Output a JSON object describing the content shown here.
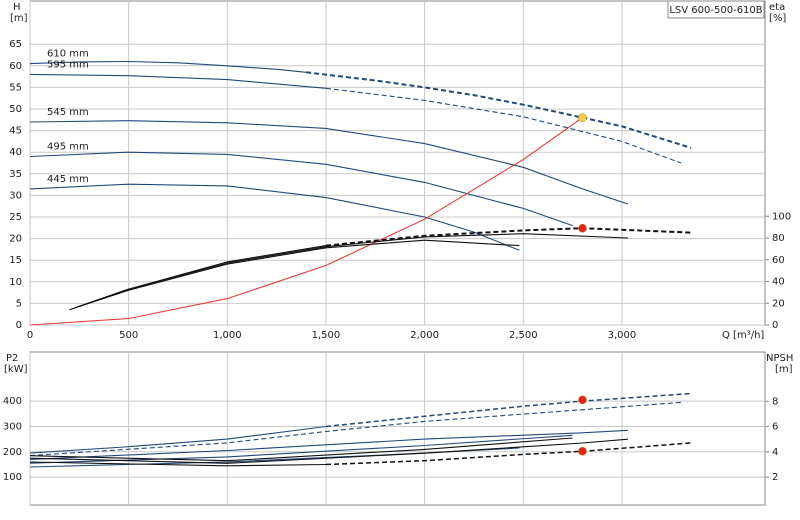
{
  "chart_data": [
    {
      "type": "line",
      "title": "LSV 600-500-610B",
      "ylabel": "H",
      "yunit": "[m]",
      "y2label": "eta",
      "y2unit": "[%]",
      "xlabel": "Q [m³/h]",
      "xlim": [
        0,
        3725
      ],
      "xticks": [
        0,
        500,
        {
          "value": 1000,
          "label": "1,000"
        },
        {
          "value": 1500,
          "label": "1,500"
        },
        {
          "value": 2000,
          "label": "2,000"
        },
        {
          "value": 2500,
          "label": "2,500"
        },
        {
          "value": 3000,
          "label": "3,000"
        }
      ],
      "ylim": [
        0,
        75
      ],
      "yticks": [
        0,
        5,
        10,
        15,
        20,
        25,
        30,
        35,
        40,
        45,
        50,
        55,
        60,
        65
      ],
      "y2lim": [
        0,
        298
      ],
      "y2ticks": [
        0,
        20,
        40,
        60,
        80,
        100
      ],
      "grid": true,
      "series": [
        {
          "label": "610 mm",
          "color": "#23497a",
          "x": [
            0,
            250,
            500,
            750,
            1000,
            1250,
            1400
          ],
          "values": [
            60.5,
            60.9,
            61,
            60.7,
            60,
            59.2,
            58.5
          ]
        },
        {
          "color": "#23497a",
          "dash": true,
          "width": 2,
          "x": [
            1400,
            1750,
            2000,
            2250,
            2500,
            2800,
            3000,
            3350
          ],
          "values": [
            58.5,
            56.6,
            55,
            53.2,
            51,
            48,
            46,
            41
          ]
        },
        {
          "label": "595 mm",
          "color": "#23497a",
          "x": [
            0,
            500,
            1000,
            1500
          ],
          "values": [
            58,
            57.7,
            56.8,
            54.8
          ]
        },
        {
          "color": "#23497a",
          "dash": true,
          "x": [
            1500,
            2000,
            2500,
            3000,
            3300
          ],
          "values": [
            54.8,
            52,
            48.2,
            42.5,
            37.5
          ]
        },
        {
          "label": "545 mm",
          "color": "#23497a",
          "x": [
            0,
            500,
            1000,
            1500,
            2000,
            2500,
            2800,
            3030
          ],
          "values": [
            47,
            47.3,
            46.8,
            45.5,
            42,
            36.5,
            31.5,
            28
          ]
        },
        {
          "label": "495 mm",
          "color": "#23497a",
          "x": [
            0,
            500,
            1000,
            1500,
            2000,
            2500,
            2750
          ],
          "values": [
            39,
            40,
            39.5,
            37.2,
            33,
            27,
            23
          ]
        },
        {
          "label": "445 mm",
          "color": "#23497a",
          "x": [
            0,
            500,
            1000,
            1500,
            2000,
            2250,
            2480
          ],
          "values": [
            31.5,
            32.6,
            32.2,
            29.5,
            25,
            21.5,
            17.3
          ]
        },
        {
          "color": "#e83b3b",
          "x": [
            0,
            500,
            1000,
            1500,
            2000,
            2500,
            2800
          ],
          "values": [
            0,
            1.5,
            6.1,
            13.8,
            24.5,
            38.3,
            48
          ]
        },
        {
          "color": "#111",
          "axis": "y2",
          "x": [
            200,
            500,
            1000,
            1500
          ],
          "values": [
            14,
            33,
            58,
            73
          ]
        },
        {
          "color": "#111",
          "axis": "y2",
          "dash": true,
          "width": 2,
          "x": [
            1500,
            2000,
            2500,
            2800,
            3350
          ],
          "values": [
            73,
            82,
            87,
            89,
            85
          ]
        },
        {
          "color": "#111",
          "axis": "y2",
          "x": [
            230,
            500,
            1000,
            1500,
            2000,
            2500,
            3030
          ],
          "values": [
            16,
            33,
            57,
            72,
            81,
            84,
            80
          ]
        },
        {
          "color": "#111",
          "axis": "y2",
          "x": [
            250,
            500,
            1000,
            1500,
            2000,
            2480
          ],
          "values": [
            17,
            32,
            56,
            71,
            78,
            73
          ]
        }
      ],
      "points": [
        {
          "x": 2800,
          "y": 48,
          "color": "#f5d142"
        },
        {
          "x": 2800,
          "y": 89,
          "axis": "y2",
          "color": "#e8201e"
        }
      ]
    },
    {
      "type": "line",
      "ylabel": "P2",
      "yunit": "[kW]",
      "y2label": "NPSH",
      "y2unit": "[m]",
      "xlim": [
        0,
        3725
      ],
      "xticks": [
        0,
        500,
        1000,
        1500,
        2000,
        2500,
        3000
      ],
      "ylim": [
        -10,
        594
      ],
      "yticks": [
        100,
        200,
        300,
        400
      ],
      "y2lim": [
        -0.2,
        11.9
      ],
      "y2ticks": [
        2,
        4,
        6,
        8
      ],
      "grid": true,
      "series": [
        {
          "color": "#23497a",
          "x": [
            0,
            500,
            1000,
            1500
          ],
          "values": [
            195,
            220,
            250,
            300
          ]
        },
        {
          "color": "#23497a",
          "dash": true,
          "width": 1.5,
          "x": [
            1500,
            2000,
            2500,
            2800,
            3350
          ],
          "values": [
            300,
            340,
            380,
            400,
            430
          ]
        },
        {
          "color": "#23497a",
          "dash": true,
          "x": [
            0,
            1000,
            1500,
            2000,
            3300
          ],
          "values": [
            185,
            235,
            280,
            320,
            395
          ]
        },
        {
          "color": "#23497a",
          "x": [
            0,
            1000,
            2000,
            2800,
            3030
          ],
          "values": [
            170,
            205,
            250,
            275,
            285
          ]
        },
        {
          "color": "#23497a",
          "x": [
            0,
            1000,
            2000,
            2750
          ],
          "values": [
            155,
            180,
            225,
            265
          ]
        },
        {
          "color": "#23497a",
          "x": [
            0,
            1000,
            2000,
            2480
          ],
          "values": [
            140,
            160,
            195,
            215
          ]
        },
        {
          "color": "#111",
          "axis": "y2",
          "x": [
            0,
            1000,
            1500
          ],
          "values": [
            3.2,
            2.9,
            3
          ]
        },
        {
          "color": "#111",
          "axis": "y2",
          "dash": true,
          "width": 1.5,
          "x": [
            1500,
            2000,
            2500,
            2800,
            3350
          ],
          "values": [
            3,
            3.3,
            3.8,
            4.05,
            4.7
          ]
        },
        {
          "color": "#111",
          "axis": "y2",
          "x": [
            0,
            1000,
            2000,
            2800,
            3030
          ],
          "values": [
            3.5,
            3.1,
            3.9,
            4.7,
            5
          ]
        },
        {
          "color": "#111",
          "axis": "y2",
          "x": [
            0,
            1000,
            2000,
            2750
          ],
          "values": [
            3.7,
            3.3,
            4.2,
            5.1
          ]
        }
      ],
      "points": [
        {
          "x": 2800,
          "y": 405,
          "color": "#e8201e"
        },
        {
          "x": 2800,
          "y": 4.05,
          "axis": "y2",
          "color": "#e8201e"
        }
      ]
    }
  ]
}
